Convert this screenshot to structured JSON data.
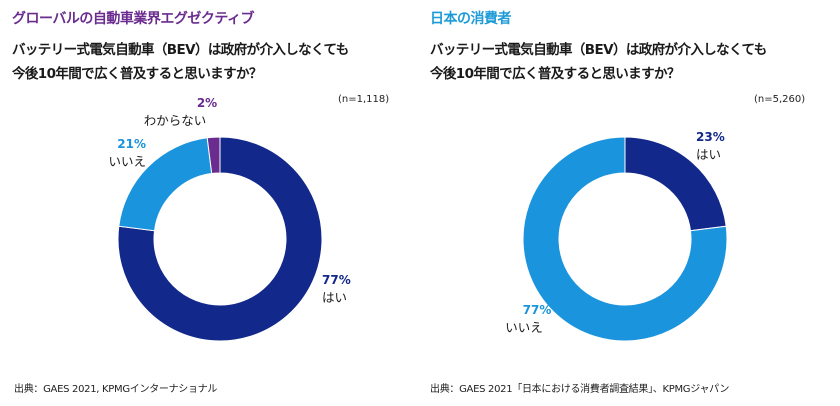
{
  "colors": {
    "dark_blue": "#12288a",
    "light_blue": "#1a94dd",
    "purple": "#6a2c8e"
  },
  "chart_data": [
    {
      "type": "pie",
      "title": "グローバルの自動車業界エグゼクティブ",
      "subtitle": "バッテリー式電気自動車（BEV）は政府が介入しなくても今後10年間で広く普及すると思いますか？",
      "question_lines": [
        "バッテリー式電気自動車（BEV）は政府が介入しなくても",
        "今後10年間で広く普及すると思いますか？"
      ],
      "sample_size": "(n=1,118)",
      "categories": [
        "はい",
        "いいえ",
        "わからない"
      ],
      "values": [
        77,
        21,
        2
      ],
      "value_labels": [
        "77%",
        "21%",
        "2%"
      ],
      "source": "出典：GAES 2021, KPMGインターナショナル"
    },
    {
      "type": "pie",
      "title": "日本の消費者",
      "subtitle": "バッテリー式電気自動車（BEV）は政府が介入しなくても今後10年間で広く普及すると思いますか？",
      "question_lines": [
        "バッテリー式電気自動車（BEV）は政府が介入しなくても",
        "今後10年間で広く普及すると思いますか？"
      ],
      "sample_size": "(n=5,260)",
      "categories": [
        "はい",
        "いいえ"
      ],
      "values": [
        23,
        77
      ],
      "value_labels": [
        "23%",
        "77%"
      ],
      "source": "出典：GAES 2021「日本における消費者調査結果」、KPMGジャパン"
    }
  ]
}
